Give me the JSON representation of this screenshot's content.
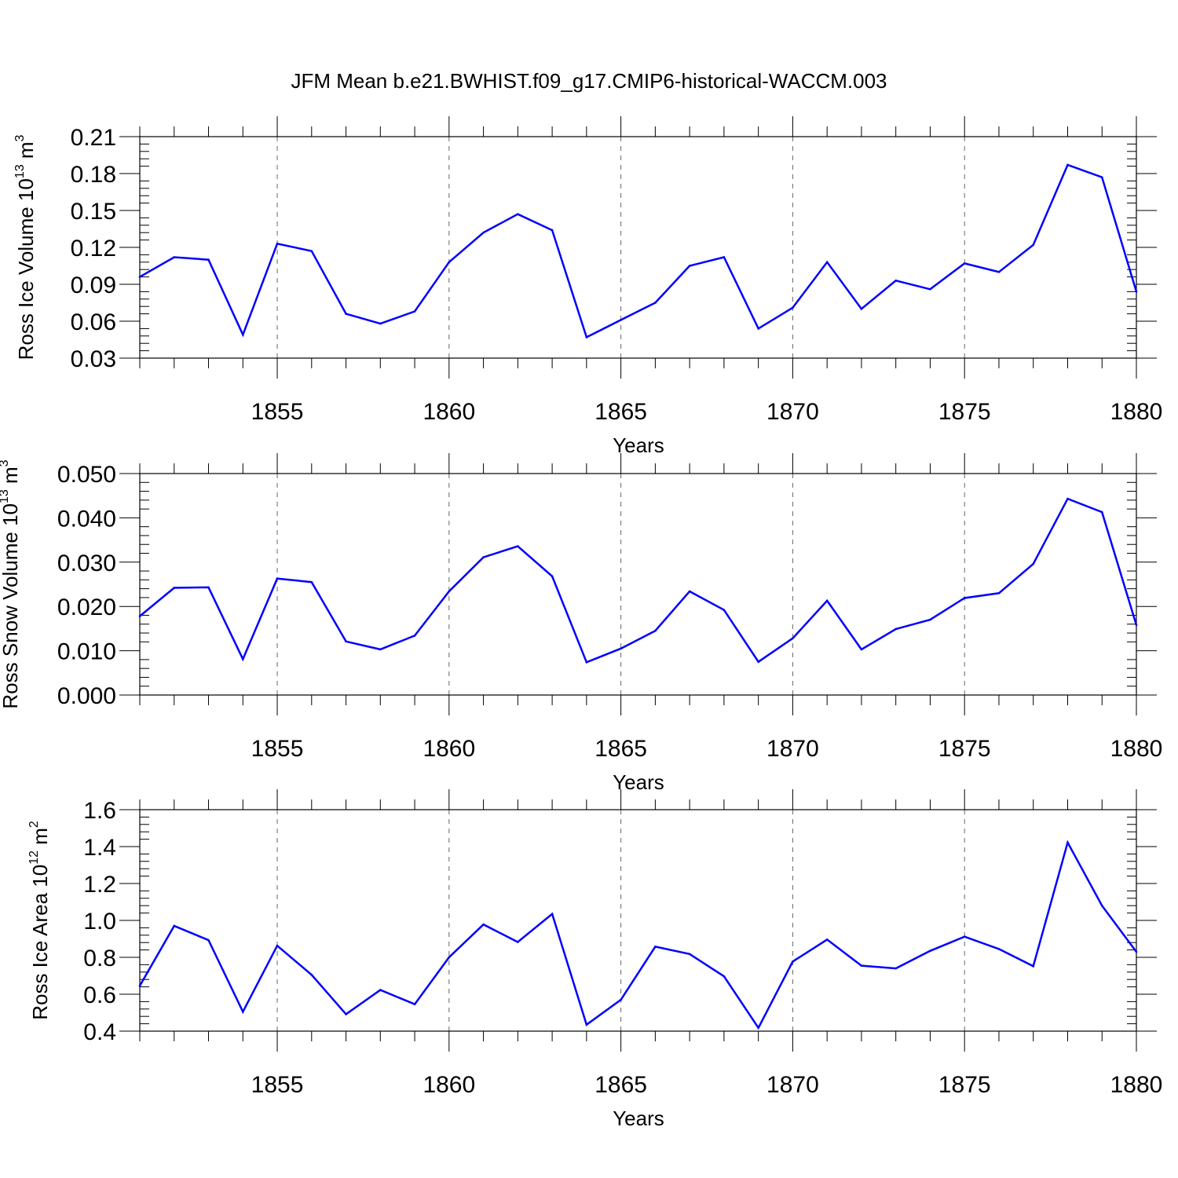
{
  "title": "JFM Mean b.e21.BWHIST.f09_g17.CMIP6-historical-WACCM.003",
  "chart_data": [
    {
      "type": "line",
      "ylabel": "Ross Ice Volume 10",
      "ylabel_exp": "13",
      "ylabel_unit": " m",
      "ylabel_unit_exp": "3",
      "xlabel": "Years",
      "ylim": [
        0.03,
        0.21
      ],
      "xlim": [
        1851,
        1880
      ],
      "yticks": [
        "0.03",
        "0.06",
        "0.09",
        "0.12",
        "0.15",
        "0.18",
        "0.21"
      ],
      "xticks": [
        "1855",
        "1860",
        "1865",
        "1870",
        "1875",
        "1880"
      ],
      "line_color": "#0000ff",
      "x": [
        1851,
        1852,
        1853,
        1854,
        1855,
        1856,
        1857,
        1858,
        1859,
        1860,
        1861,
        1862,
        1863,
        1864,
        1865,
        1866,
        1867,
        1868,
        1869,
        1870,
        1871,
        1872,
        1873,
        1874,
        1875,
        1876,
        1877,
        1878,
        1879,
        1880
      ],
      "values": [
        0.096,
        0.112,
        0.11,
        0.049,
        0.123,
        0.117,
        0.066,
        0.058,
        0.068,
        0.108,
        0.132,
        0.147,
        0.134,
        0.047,
        0.061,
        0.075,
        0.105,
        0.112,
        0.054,
        0.071,
        0.108,
        0.07,
        0.093,
        0.086,
        0.107,
        0.1,
        0.122,
        0.187,
        0.177,
        0.084
      ]
    },
    {
      "type": "line",
      "ylabel": "Ross Snow Volume 10",
      "ylabel_exp": "13",
      "ylabel_unit": " m",
      "ylabel_unit_exp": "3",
      "xlabel": "Years",
      "ylim": [
        0.0,
        0.05
      ],
      "xlim": [
        1851,
        1880
      ],
      "yticks": [
        "0.000",
        "0.010",
        "0.020",
        "0.030",
        "0.040",
        "0.050"
      ],
      "xticks": [
        "1855",
        "1860",
        "1865",
        "1870",
        "1875",
        "1880"
      ],
      "line_color": "#0000ff",
      "x": [
        1851,
        1852,
        1853,
        1854,
        1855,
        1856,
        1857,
        1858,
        1859,
        1860,
        1861,
        1862,
        1863,
        1864,
        1865,
        1866,
        1867,
        1868,
        1869,
        1870,
        1871,
        1872,
        1873,
        1874,
        1875,
        1876,
        1877,
        1878,
        1879,
        1880
      ],
      "values": [
        0.0178,
        0.0242,
        0.0243,
        0.0081,
        0.0263,
        0.0255,
        0.0121,
        0.0103,
        0.0134,
        0.0234,
        0.0311,
        0.0336,
        0.0268,
        0.0074,
        0.0105,
        0.0145,
        0.0234,
        0.0192,
        0.0075,
        0.0128,
        0.0213,
        0.0103,
        0.0149,
        0.017,
        0.0219,
        0.023,
        0.0296,
        0.0443,
        0.0413,
        0.0158
      ]
    },
    {
      "type": "line",
      "ylabel": "Ross Ice Area 10",
      "ylabel_exp": "12",
      "ylabel_unit": " m",
      "ylabel_unit_exp": "2",
      "xlabel": "Years",
      "ylim": [
        0.4,
        1.6
      ],
      "xlim": [
        1851,
        1880
      ],
      "yticks": [
        "0.4",
        "0.6",
        "0.8",
        "1.0",
        "1.2",
        "1.4",
        "1.6"
      ],
      "xticks": [
        "1855",
        "1860",
        "1865",
        "1870",
        "1875",
        "1880"
      ],
      "line_color": "#0000ff",
      "x": [
        1851,
        1852,
        1853,
        1854,
        1855,
        1856,
        1857,
        1858,
        1859,
        1860,
        1861,
        1862,
        1863,
        1864,
        1865,
        1866,
        1867,
        1868,
        1869,
        1870,
        1871,
        1872,
        1873,
        1874,
        1875,
        1876,
        1877,
        1878,
        1879,
        1880
      ],
      "values": [
        0.646,
        0.97,
        0.893,
        0.505,
        0.863,
        0.705,
        0.492,
        0.623,
        0.546,
        0.8,
        0.978,
        0.883,
        1.035,
        0.435,
        0.57,
        0.858,
        0.818,
        0.697,
        0.418,
        0.777,
        0.896,
        0.755,
        0.74,
        0.835,
        0.912,
        0.845,
        0.752,
        1.422,
        1.08,
        0.83
      ]
    }
  ]
}
